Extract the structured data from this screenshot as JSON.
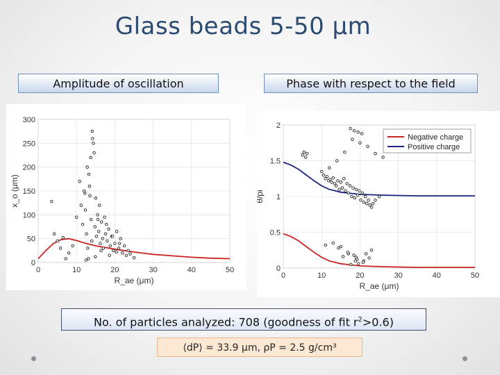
{
  "slide": {
    "title": "Glass beads 5-50 μm",
    "left_label": "Amplitude of oscillation",
    "right_label": "Phase with respect to the field",
    "stats_prefix": "No. of particles analyzed: 708 (goodness of fit r",
    "stats_sup": "2",
    "stats_suffix": ">0.6)",
    "formula": "⟨dP⟩ = 33.9 μm, ρP = 2.5 g/cm³"
  },
  "chart_data": [
    {
      "type": "scatter",
      "title": "",
      "xlabel": "R_ae (μm)",
      "ylabel": "x_o (μm)",
      "xlim": [
        0,
        50
      ],
      "ylim": [
        0,
        300
      ],
      "xticks": [
        "0",
        "10",
        "20",
        "30",
        "40",
        "50"
      ],
      "yticks": [
        "0",
        "50",
        "100",
        "150",
        "200",
        "250",
        "300"
      ],
      "grid": true,
      "series": [
        {
          "name": "fit",
          "kind": "line",
          "color": "#cc2222",
          "x": [
            0,
            2,
            4,
            6,
            8,
            10,
            12,
            15,
            20,
            25,
            30,
            35,
            40,
            45,
            50
          ],
          "y": [
            8,
            25,
            40,
            48,
            50,
            46,
            41,
            35,
            28,
            22,
            17,
            14,
            11,
            9,
            8
          ]
        },
        {
          "name": "measured",
          "kind": "points",
          "color": "#222222",
          "x": [
            3.5,
            4.2,
            5.0,
            5.8,
            6.5,
            7.2,
            8.0,
            9.0,
            10.0,
            10.8,
            11.2,
            11.6,
            12.0,
            12.3,
            12.6,
            12.9,
            13.2,
            13.5,
            13.8,
            14.0,
            14.2,
            14.4,
            14.6,
            14.8,
            15.0,
            15.2,
            15.5,
            15.8,
            16.0,
            16.2,
            16.5,
            16.8,
            17.0,
            17.3,
            17.6,
            18.0,
            18.4,
            18.8,
            19.2,
            19.6,
            20.0,
            20.5,
            21.0,
            21.5,
            22.0,
            22.5,
            23.0,
            23.5,
            24.0,
            25.0,
            12.8,
            13.4,
            14.1,
            13.7,
            12.2,
            15.6,
            16.4,
            17.8,
            18.6,
            19.4,
            20.4,
            21.2,
            14.9,
            13.1,
            12.5
          ],
          "y": [
            128,
            60,
            45,
            30,
            52,
            8,
            20,
            35,
            95,
            170,
            120,
            80,
            150,
            110,
            60,
            30,
            185,
            140,
            90,
            45,
            260,
            250,
            230,
            75,
            135,
            55,
            100,
            65,
            120,
            40,
            85,
            50,
            30,
            95,
            60,
            45,
            70,
            35,
            55,
            25,
            40,
            65,
            30,
            50,
            20,
            35,
            15,
            25,
            18,
            10,
            200,
            160,
            275,
            220,
            145,
            90,
            25,
            80,
            15,
            55,
            22,
            40,
            12,
            8,
            5
          ]
        }
      ]
    },
    {
      "type": "scatter",
      "title": "",
      "xlabel": "R_ae (μm)",
      "ylabel": "θ/pi",
      "xlim": [
        0,
        50
      ],
      "ylim": [
        0,
        2
      ],
      "xticks": [
        "0",
        "10",
        "20",
        "30",
        "40",
        "50"
      ],
      "yticks": [
        "0",
        "0.5",
        "1",
        "1.5",
        "2"
      ],
      "grid": true,
      "legend": [
        "Negative charge",
        "Positive charge"
      ],
      "legend_position": "top-right",
      "series": [
        {
          "name": "Negative charge",
          "kind": "line",
          "color": "#cc2222",
          "x": [
            0,
            2,
            4,
            6,
            8,
            10,
            12,
            15,
            20,
            25,
            30,
            35,
            40,
            45,
            50
          ],
          "y": [
            0.48,
            0.44,
            0.38,
            0.3,
            0.22,
            0.15,
            0.1,
            0.06,
            0.03,
            0.02,
            0.015,
            0.01,
            0.01,
            0.01,
            0.01
          ]
        },
        {
          "name": "Positive charge",
          "kind": "line",
          "color": "#1a237e",
          "x": [
            0,
            2,
            4,
            6,
            8,
            10,
            12,
            15,
            20,
            25,
            30,
            35,
            40,
            45,
            50
          ],
          "y": [
            1.48,
            1.44,
            1.38,
            1.3,
            1.22,
            1.15,
            1.1,
            1.06,
            1.03,
            1.02,
            1.015,
            1.01,
            1.01,
            1.01,
            1.01
          ]
        },
        {
          "name": "measured",
          "kind": "points",
          "color": "#222222",
          "x": [
            5.0,
            5.4,
            5.8,
            6.2,
            10.5,
            11.0,
            11.4,
            11.8,
            12.2,
            12.6,
            13.0,
            13.4,
            13.8,
            14.2,
            14.6,
            15.0,
            15.4,
            15.8,
            16.2,
            16.6,
            17.0,
            17.4,
            17.8,
            18.2,
            18.6,
            19.0,
            19.4,
            19.8,
            20.2,
            20.6,
            21.0,
            21.4,
            21.8,
            22.2,
            22.6,
            23.0,
            23.4,
            24.0,
            25.0,
            17.5,
            18.5,
            19.5,
            20.5,
            18.0,
            16.0,
            14.0,
            12.0,
            10.0,
            20.0,
            22.0,
            24.0,
            26.0,
            15.0,
            17.0,
            19.0,
            21.0,
            23.0,
            13.0,
            11.0,
            19.2,
            18.4,
            16.8,
            20.8,
            22.4,
            17.6,
            15.6,
            14.4,
            19.6,
            21.6,
            18.8
          ],
          "y": [
            1.58,
            1.62,
            1.55,
            1.6,
            1.3,
            1.25,
            1.28,
            1.22,
            1.24,
            1.2,
            1.26,
            1.18,
            1.15,
            1.22,
            1.1,
            1.2,
            1.12,
            1.25,
            1.08,
            1.18,
            1.05,
            1.15,
            1.0,
            1.12,
            0.98,
            1.1,
            1.02,
            1.08,
            0.95,
            1.05,
            0.92,
            1.0,
            0.9,
            0.95,
            0.88,
            0.85,
            0.9,
            0.95,
            1.0,
            1.95,
            1.92,
            1.9,
            1.88,
            1.8,
            1.62,
            1.5,
            1.4,
            1.35,
            1.75,
            1.7,
            1.6,
            1.55,
            0.3,
            0.2,
            0.15,
            0.1,
            0.25,
            0.35,
            0.32,
            0.12,
            0.18,
            0.22,
            0.08,
            0.14,
            0.05,
            0.16,
            0.28,
            0.06,
            0.2,
            0.1
          ]
        }
      ]
    }
  ]
}
